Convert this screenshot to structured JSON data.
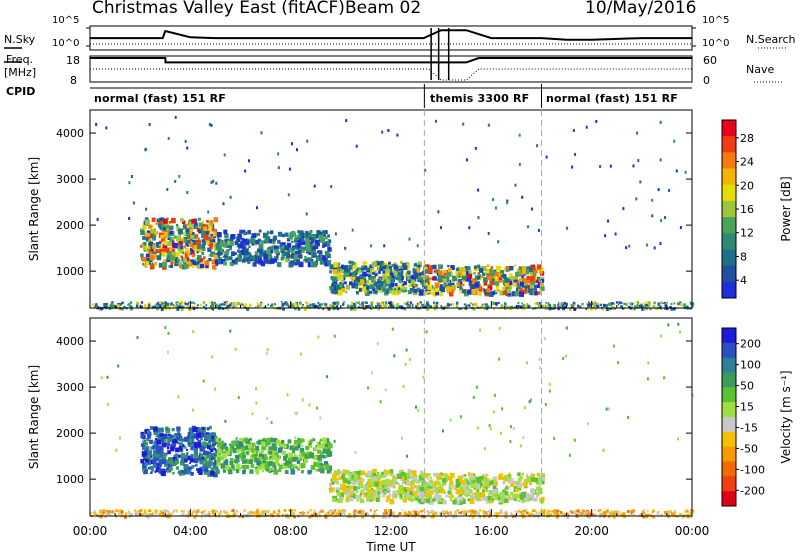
{
  "header": {
    "title": "Christmas Valley East (fitACF)",
    "beam": "Beam 02",
    "date": "10/May/2016"
  },
  "summary_panels": {
    "nsky_label": "N.Sky",
    "nsky_ticks": [
      "10^5",
      "10^0"
    ],
    "nsearch_label": "N.Search",
    "nsearch_ticks": [
      "10^5",
      "10^0"
    ],
    "freq_label": "Freq.",
    "freq_unit": "[MHz]",
    "freq_ticks": [
      "18",
      "8"
    ],
    "nave_label": "Nave",
    "nave_ticks": [
      "60",
      "0"
    ],
    "cpid_label": "CPID"
  },
  "cpid_modes": [
    {
      "label": "normal (fast) 151 RF",
      "start_hour": 0
    },
    {
      "label": "themis 3300 RF",
      "start_hour": 13.33
    },
    {
      "label": "normal (fast) 151 RF",
      "start_hour": 18
    }
  ],
  "colorbars": {
    "power": {
      "label": "Power [dB]",
      "ticks": [
        "28",
        "24",
        "20",
        "16",
        "12",
        "8",
        "4"
      ],
      "colors": [
        "#e8001c",
        "#f03c10",
        "#f57c0a",
        "#f5b400",
        "#e6dc00",
        "#9cc63c",
        "#4aa35a",
        "#2e8b6e",
        "#1f6f8b",
        "#1f4fa0",
        "#1c2fd8"
      ]
    },
    "velocity": {
      "label": "Velocity [m s⁻¹]",
      "ticks": [
        "200",
        "100",
        "50",
        "15",
        "-15",
        "-50",
        "-100",
        "-200"
      ],
      "colors": [
        "#1c1cd8",
        "#2a4fc0",
        "#2f7f98",
        "#3c9a5a",
        "#58c232",
        "#9fe040",
        "#c8c8c8",
        "#f5c000",
        "#f59a00",
        "#f56a00",
        "#f04010",
        "#e00014"
      ]
    }
  },
  "x_axis": {
    "label": "Time UT",
    "ticks": [
      "00:00",
      "04:00",
      "08:00",
      "12:00",
      "16:00",
      "20:00",
      "00:00"
    ]
  },
  "y_axis": {
    "label": "Slant Range [km]",
    "ticks": [
      "4000",
      "3000",
      "2000",
      "1000"
    ]
  },
  "chart_data": [
    {
      "type": "line",
      "name": "N.Sky / N.Search",
      "x_hours": [
        0,
        0.5,
        1,
        2,
        2.9,
        3.0,
        3.5,
        4,
        5,
        6,
        8,
        10,
        12,
        13.3,
        14,
        15,
        16,
        17,
        18,
        19,
        20,
        22,
        24
      ],
      "nsky_log": [
        1.0,
        1.0,
        1.0,
        1.0,
        1.0,
        1.9,
        1.5,
        1.1,
        1.0,
        1.0,
        1.0,
        1.0,
        1.0,
        1.0,
        2.0,
        2.0,
        1.0,
        1.0,
        1.0,
        0.8,
        0.8,
        1.0,
        1.0
      ],
      "ylim": [
        0,
        5
      ]
    },
    {
      "type": "line",
      "name": "Freq / Nave",
      "x_hours": [
        0,
        3.0,
        3.01,
        13.5,
        14,
        15,
        15.5,
        24
      ],
      "freq_mhz": [
        18,
        18,
        16,
        16,
        16,
        16,
        18,
        18
      ],
      "nave": [
        30,
        30,
        30,
        30,
        0,
        0,
        30,
        30
      ],
      "freq_ylim": [
        8,
        18
      ],
      "nave_ylim": [
        0,
        60
      ]
    },
    {
      "type": "heatmap",
      "name": "Power [dB]",
      "xlim_hours": [
        0,
        24
      ],
      "ylim_km": [
        200,
        4500
      ],
      "zlim": [
        0,
        30
      ],
      "dashed_markers_hours": [
        13.33,
        18
      ],
      "echo_regions": [
        {
          "x": [
            2.0,
            5.0
          ],
          "y": [
            700,
            2600
          ],
          "peak": 28
        },
        {
          "x": [
            5.0,
            9.5
          ],
          "y": [
            900,
            2200
          ],
          "peak": 14
        },
        {
          "x": [
            9.5,
            13.3
          ],
          "y": [
            300,
            1500
          ],
          "peak": 20
        },
        {
          "x": [
            13.3,
            18.0
          ],
          "y": [
            300,
            1400
          ],
          "peak": 28
        },
        {
          "x": [
            0,
            24
          ],
          "y": [
            200,
            350
          ],
          "peak": 20
        }
      ]
    },
    {
      "type": "heatmap",
      "name": "Velocity [m s-1]",
      "xlim_hours": [
        0,
        24
      ],
      "ylim_km": [
        200,
        4500
      ],
      "zlim": [
        -200,
        200
      ],
      "dashed_markers_hours": [
        13.33,
        18
      ],
      "echo_regions": [
        {
          "x": [
            2.0,
            5.0
          ],
          "y": [
            700,
            2600
          ],
          "value": 150
        },
        {
          "x": [
            5.0,
            9.5
          ],
          "y": [
            900,
            2200
          ],
          "value": 60
        },
        {
          "x": [
            9.5,
            13.3
          ],
          "y": [
            300,
            1500
          ],
          "value": 0
        },
        {
          "x": [
            13.3,
            18.0
          ],
          "y": [
            300,
            1400
          ],
          "value": 0
        },
        {
          "x": [
            0,
            24
          ],
          "y": [
            200,
            350
          ],
          "value": -60
        }
      ]
    }
  ]
}
